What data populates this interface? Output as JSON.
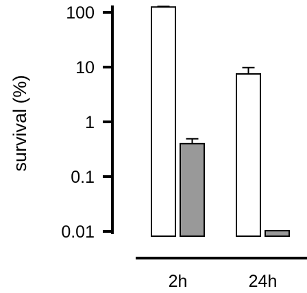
{
  "chart_data": {
    "type": "bar",
    "y_scale": "log",
    "ylabel": "survival (%)",
    "ylim": [
      0.01,
      100
    ],
    "y_ticks": [
      {
        "value": 100,
        "label": "100"
      },
      {
        "value": 10,
        "label": "10"
      },
      {
        "value": 1,
        "label": "1"
      },
      {
        "value": 0.1,
        "label": "0.1"
      },
      {
        "value": 0.01,
        "label": "0.01"
      }
    ],
    "categories": [
      "2h",
      "24h"
    ],
    "series": [
      {
        "color": "#ffffff",
        "values": [
          125,
          7.5
        ],
        "error_upper": [
          128,
          9.8
        ]
      },
      {
        "color": "#999999",
        "values": [
          0.4,
          0.01
        ],
        "error_upper": [
          0.49,
          null
        ]
      }
    ],
    "grid": false,
    "legend": "none"
  }
}
